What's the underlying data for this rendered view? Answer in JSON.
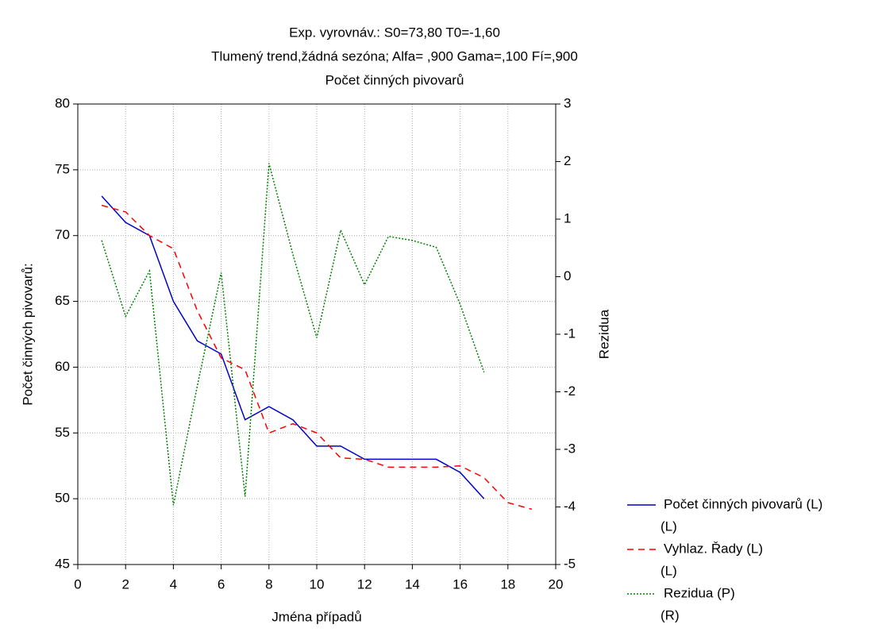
{
  "chart_data": {
    "type": "line",
    "title": "Exp. vyrovnáv.:  S0=73,80 T0=-1,60",
    "subtitle": "Tlumený trend,žádná sezóna; Alfa=  ,900 Gama=,100 Fí=,900",
    "subtitle2": "Počet činných pivovarů",
    "x_label": "Jména případů",
    "y_label": "Počet činných pivovarů:",
    "y2_label": "Rezidua",
    "xlim": [
      0,
      20
    ],
    "xticks": [
      0,
      2,
      4,
      6,
      8,
      10,
      12,
      14,
      16,
      18,
      20
    ],
    "ylim": [
      45,
      80
    ],
    "yticks": [
      45,
      50,
      55,
      60,
      65,
      70,
      75,
      80
    ],
    "y2lim": [
      -5,
      3
    ],
    "y2ticks": [
      -5,
      -4,
      -3,
      -2,
      -1,
      0,
      1,
      2,
      3
    ],
    "grid": true,
    "legend": "right",
    "series": [
      {
        "name": "Počet činných pivovarů (L)",
        "axis_note": "(L)",
        "color": "#0000cc",
        "dash": "solid",
        "x": [
          1,
          2,
          3,
          4,
          5,
          6,
          7,
          8,
          9,
          10,
          11,
          12,
          13,
          14,
          15,
          16,
          17
        ],
        "values": [
          73,
          71,
          70,
          65,
          62,
          61,
          56,
          57,
          56,
          54,
          54,
          53,
          53,
          53,
          53,
          52,
          50
        ]
      },
      {
        "name": "Vyhlaz. Řady (L)",
        "axis_note": "(L)",
        "color": "#ff0000",
        "dash": "dashed",
        "x": [
          1,
          2,
          3,
          4,
          5,
          6,
          7,
          8,
          9,
          10,
          11,
          12,
          13,
          14,
          15,
          16,
          17,
          18,
          19
        ],
        "values": [
          72.3,
          71.8,
          70,
          69,
          64.3,
          60.7,
          59.8,
          55,
          55.7,
          55,
          53.1,
          53,
          52.4,
          52.4,
          52.4,
          52.5,
          51.6,
          49.7,
          49.2
        ]
      },
      {
        "name": "Rezidua (P)",
        "axis_note": "(R)",
        "color": "#008000",
        "dash": "dotted",
        "axis": "y2",
        "x": [
          1,
          2,
          3,
          4,
          5,
          6,
          7,
          8,
          9,
          10,
          11,
          12,
          13,
          14,
          15,
          16,
          17
        ],
        "values": [
          0.63,
          -0.69,
          0.1,
          -3.97,
          -1.9,
          0.07,
          -3.82,
          1.97,
          0.39,
          -1.06,
          0.81,
          -0.14,
          0.7,
          0.63,
          0.51,
          -0.48,
          -1.66
        ]
      }
    ]
  }
}
